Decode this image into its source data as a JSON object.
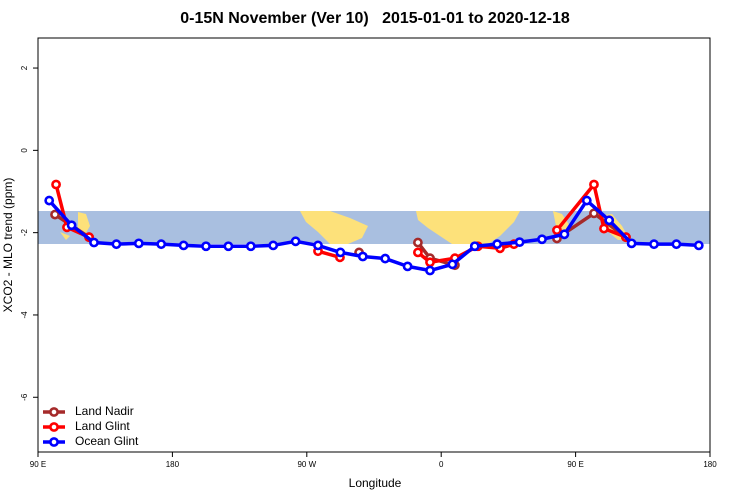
{
  "chart_data": {
    "type": "line",
    "title": "0-15N November (Ver 10)   2015-01-01 to 2020-12-18",
    "x_label": "Longitude",
    "y_label": "XCO2 - MLO trend (ppm)",
    "xlim": [
      90,
      540
    ],
    "xticks": [
      {
        "value": 90,
        "label": "90 E"
      },
      180,
      {
        "value": 270,
        "label": "90 W"
      },
      {
        "value": 360,
        "label": "0"
      },
      {
        "value": 450,
        "label": "90 E"
      },
      {
        "value": 540,
        "label": "180"
      }
    ],
    "ylim": [
      -7.33,
      2.73
    ],
    "yticks": [
      2,
      0,
      -2,
      -4,
      -6
    ],
    "legend": "bottom-left",
    "series": [
      {
        "name": "Land Nadir",
        "color": "#a52a2a",
        "x": [
          101.4,
          124.2,
          null,
          305.0,
          null,
          344.4,
          352.5,
          369.2,
          null,
          437.5,
          462.3,
          483.7
        ],
        "values": [
          -1.56,
          -2.11,
          null,
          -2.48,
          null,
          -2.24,
          -2.62,
          -2.79,
          null,
          -2.14,
          -1.53,
          -2.11
        ]
      },
      {
        "name": "Land Glint",
        "color": "#ff0000",
        "x": [
          102.1,
          109.4,
          124.2,
          null,
          277.5,
          292.2,
          null,
          344.4,
          352.5,
          369.2,
          384.6,
          399.4,
          408.7,
          null,
          437.5,
          462.3,
          469.0,
          483.7
        ],
        "values": [
          -0.83,
          -1.87,
          -2.11,
          null,
          -2.45,
          -2.6,
          null,
          -2.48,
          -2.72,
          -2.62,
          -2.33,
          -2.38,
          -2.28,
          null,
          -1.94,
          -0.83,
          -1.9,
          -2.11
        ]
      },
      {
        "name": "Ocean Glint",
        "color": "#0000ff",
        "x": [
          97.5,
          112.5,
          127.5,
          142.5,
          157.5,
          172.5,
          187.5,
          202.5,
          217.5,
          232.5,
          247.5,
          262.5,
          277.5,
          292.5,
          307.5,
          322.5,
          337.5,
          352.5,
          367.5,
          382.5,
          397.5,
          412.5,
          427.5,
          442.5,
          457.5,
          472.5,
          487.5,
          502.5,
          517.5,
          532.5
        ],
        "values": [
          -1.22,
          -1.82,
          -2.24,
          -2.28,
          -2.26,
          -2.28,
          -2.31,
          -2.33,
          -2.33,
          -2.33,
          -2.31,
          -2.21,
          -2.31,
          -2.48,
          -2.58,
          -2.63,
          -2.82,
          -2.92,
          -2.77,
          -2.33,
          -2.28,
          -2.23,
          -2.16,
          -2.04,
          -1.22,
          -1.7,
          -2.26,
          -2.28,
          -2.28,
          -2.31
        ]
      }
    ]
  }
}
